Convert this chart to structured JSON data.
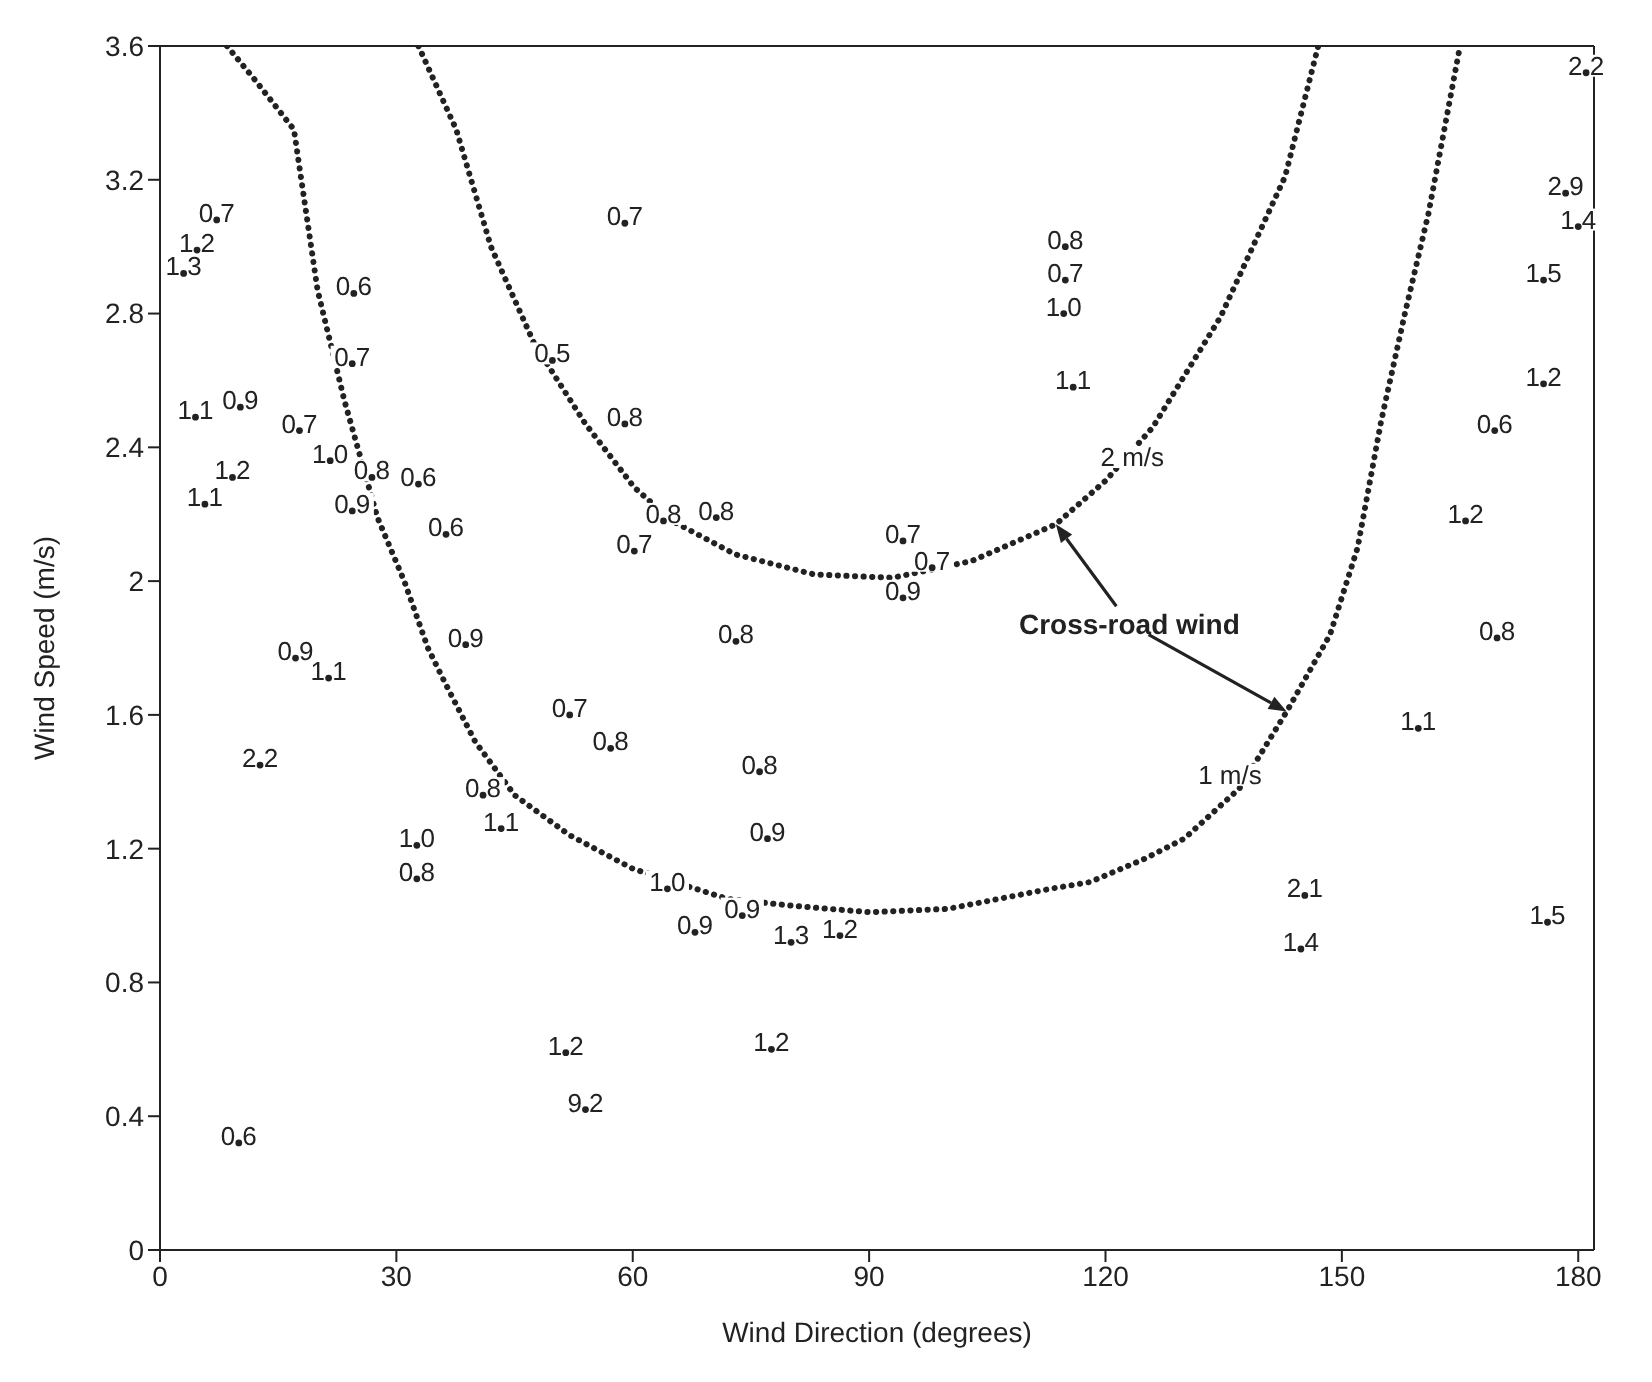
{
  "chart_data": {
    "type": "scatter",
    "xlabel": "Wind Direction (degrees)",
    "ylabel": "Wind Speed (m/s)",
    "xlim": [
      0,
      182
    ],
    "xticks": [
      0,
      30,
      60,
      90,
      120,
      150,
      180
    ],
    "ylim": [
      0,
      3.6
    ],
    "yticks": [
      0,
      0.4,
      0.8,
      1.2,
      1.6,
      2.0,
      2.4,
      2.8,
      3.2,
      3.6
    ],
    "annotations": [
      "Cross-road wind",
      {
        "text": "2 m/s",
        "x": 123.4,
        "y": 2.35
      },
      {
        "text": "1 m/s",
        "x": 135.8,
        "y": 1.4
      },
      {
        "text": "0.7",
        "x": 7.2,
        "y": 3.08
      },
      {
        "text": "1.2",
        "x": 4.7,
        "y": 2.99
      },
      {
        "text": "1.3",
        "x": 3.0,
        "y": 2.92
      },
      {
        "text": "0.6",
        "x": 24.6,
        "y": 2.86
      },
      {
        "text": "0.7",
        "x": 24.4,
        "y": 2.65
      },
      {
        "text": "0.5",
        "x": 49.8,
        "y": 2.66
      },
      {
        "text": "1.1",
        "x": 4.5,
        "y": 2.49
      },
      {
        "text": "0.9",
        "x": 10.2,
        "y": 2.52
      },
      {
        "text": "0.7",
        "x": 17.7,
        "y": 2.45
      },
      {
        "text": "1.0",
        "x": 21.6,
        "y": 2.36
      },
      {
        "text": "0.8",
        "x": 26.9,
        "y": 2.31
      },
      {
        "text": "0.6",
        "x": 32.8,
        "y": 2.29
      },
      {
        "text": "1.2",
        "x": 9.2,
        "y": 2.31
      },
      {
        "text": "1.1",
        "x": 5.7,
        "y": 2.23
      },
      {
        "text": "0.9",
        "x": 24.4,
        "y": 2.21
      },
      {
        "text": "0.6",
        "x": 36.3,
        "y": 2.14
      },
      {
        "text": "0.9",
        "x": 17.2,
        "y": 1.77
      },
      {
        "text": "1.1",
        "x": 21.4,
        "y": 1.71
      },
      {
        "text": "0.9",
        "x": 38.8,
        "y": 1.81
      },
      {
        "text": "0.7",
        "x": 59.0,
        "y": 3.07
      },
      {
        "text": "0.8",
        "x": 59.0,
        "y": 2.47
      },
      {
        "text": "0.8",
        "x": 63.9,
        "y": 2.18
      },
      {
        "text": "0.8",
        "x": 70.6,
        "y": 2.19
      },
      {
        "text": "0.7",
        "x": 60.2,
        "y": 2.09
      },
      {
        "text": "0.7",
        "x": 94.3,
        "y": 2.12
      },
      {
        "text": "0.7",
        "x": 98.0,
        "y": 2.04
      },
      {
        "text": "0.9",
        "x": 94.3,
        "y": 1.95
      },
      {
        "text": "0.8",
        "x": 73.1,
        "y": 1.82
      },
      {
        "text": "0.8",
        "x": 114.9,
        "y": 3.0
      },
      {
        "text": "0.7",
        "x": 114.9,
        "y": 2.9
      },
      {
        "text": "1.0",
        "x": 114.7,
        "y": 2.8
      },
      {
        "text": "1.1",
        "x": 115.9,
        "y": 2.58
      },
      {
        "text": "2.2",
        "x": 181,
        "y": 3.52
      },
      {
        "text": "2.9",
        "x": 178.4,
        "y": 3.16
      },
      {
        "text": "1.4",
        "x": 180,
        "y": 3.06
      },
      {
        "text": "1.5",
        "x": 175.6,
        "y": 2.9
      },
      {
        "text": "1.2",
        "x": 175.6,
        "y": 2.59
      },
      {
        "text": "0.6",
        "x": 169.4,
        "y": 2.45
      },
      {
        "text": "1.2",
        "x": 165.7,
        "y": 2.18
      },
      {
        "text": "0.8",
        "x": 169.7,
        "y": 1.83
      },
      {
        "text": "1.1",
        "x": 159.7,
        "y": 1.56
      },
      {
        "text": "2.1",
        "x": 145.3,
        "y": 1.06
      },
      {
        "text": "1.4",
        "x": 144.8,
        "y": 0.9
      },
      {
        "text": "1.5",
        "x": 176.1,
        "y": 0.98
      },
      {
        "text": "2.2",
        "x": 12.7,
        "y": 1.45
      },
      {
        "text": "0.7",
        "x": 52.0,
        "y": 1.6
      },
      {
        "text": "0.8",
        "x": 57.2,
        "y": 1.5
      },
      {
        "text": "0.8",
        "x": 41.0,
        "y": 1.36
      },
      {
        "text": "1.1",
        "x": 43.3,
        "y": 1.26
      },
      {
        "text": "1.0",
        "x": 32.6,
        "y": 1.21
      },
      {
        "text": "0.8",
        "x": 32.6,
        "y": 1.11
      },
      {
        "text": "1.2",
        "x": 51.5,
        "y": 0.59
      },
      {
        "text": "9.2",
        "x": 54.0,
        "y": 0.42
      },
      {
        "text": "0.6",
        "x": 10.0,
        "y": 0.32
      },
      {
        "text": "0.8",
        "x": 76.1,
        "y": 1.43
      },
      {
        "text": "0.9",
        "x": 77.1,
        "y": 1.23
      },
      {
        "text": "1.0",
        "x": 64.4,
        "y": 1.08
      },
      {
        "text": "0.9",
        "x": 67.9,
        "y": 0.95
      },
      {
        "text": "0.9",
        "x": 73.9,
        "y": 1.0
      },
      {
        "text": "1.3",
        "x": 80.1,
        "y": 0.92
      },
      {
        "text": "1.2",
        "x": 86.3,
        "y": 0.94
      },
      {
        "text": "1.2",
        "x": 77.6,
        "y": 0.6
      }
    ],
    "series": [
      {
        "color": "#222222",
        "marker": "circle",
        "x": [
          7.2,
          4.7,
          3.0,
          24.6,
          24.4,
          49.8,
          4.5,
          10.2,
          17.7,
          21.6,
          26.9,
          32.8,
          9.2,
          5.7,
          24.4,
          36.3,
          17.2,
          21.4,
          38.8,
          59.0,
          59.0,
          63.9,
          70.6,
          60.2,
          94.3,
          98.0,
          94.3,
          73.1,
          114.9,
          114.9,
          114.7,
          115.9,
          181,
          178.4,
          180,
          175.6,
          175.6,
          169.4,
          165.7,
          169.7,
          159.7,
          145.3,
          144.8,
          176.1,
          12.7,
          52.0,
          57.2,
          41.0,
          43.3,
          32.6,
          32.6,
          51.5,
          54.0,
          10.0,
          76.1,
          77.1,
          64.4,
          67.9,
          73.9,
          80.1,
          86.3,
          77.6
        ],
        "values": [
          3.08,
          2.99,
          2.92,
          2.86,
          2.65,
          2.66,
          2.49,
          2.52,
          2.45,
          2.36,
          2.31,
          2.29,
          2.31,
          2.23,
          2.21,
          2.14,
          1.77,
          1.71,
          1.81,
          3.07,
          2.47,
          2.18,
          2.19,
          2.09,
          2.12,
          2.04,
          1.95,
          1.82,
          3.0,
          2.9,
          2.8,
          2.58,
          3.52,
          3.16,
          3.06,
          2.9,
          2.59,
          2.45,
          2.18,
          1.83,
          1.56,
          1.06,
          0.9,
          0.98,
          1.45,
          1.6,
          1.5,
          1.36,
          1.26,
          1.21,
          1.11,
          0.59,
          0.42,
          0.32,
          1.43,
          1.23,
          1.08,
          0.95,
          1.0,
          0.92,
          0.94,
          0.6
        ]
      },
      {
        "type": "line",
        "color": "#222222",
        "line_style": "dotted",
        "x": [
          32.8,
          37.6,
          42,
          47.5,
          54,
          60.2,
          65,
          73,
          83,
          93,
          103,
          113.7,
          120,
          126,
          134.6,
          142.8,
          147
        ],
        "values": [
          3.6,
          3.35,
          3.0,
          2.71,
          2.47,
          2.28,
          2.18,
          2.08,
          2.02,
          2.01,
          2.06,
          2.17,
          2.3,
          2.46,
          2.79,
          3.21,
          3.6
        ]
      },
      {
        "type": "line",
        "color": "#222222",
        "line_style": "dotted",
        "x": [
          8.5,
          12,
          17,
          20,
          23.4,
          27.6,
          31,
          34,
          36.3,
          40,
          45,
          52,
          60,
          72,
          80,
          90,
          100,
          113,
          118,
          125,
          130,
          137,
          143,
          148.5,
          152,
          155,
          158,
          161,
          165
        ],
        "values": [
          3.6,
          3.5,
          3.35,
          2.87,
          2.54,
          2.19,
          2.0,
          1.8,
          1.69,
          1.52,
          1.36,
          1.24,
          1.14,
          1.05,
          1.03,
          1.01,
          1.02,
          1.08,
          1.1,
          1.17,
          1.23,
          1.38,
          1.61,
          1.84,
          2.1,
          2.48,
          2.8,
          3.1,
          3.6
        ]
      }
    ]
  }
}
